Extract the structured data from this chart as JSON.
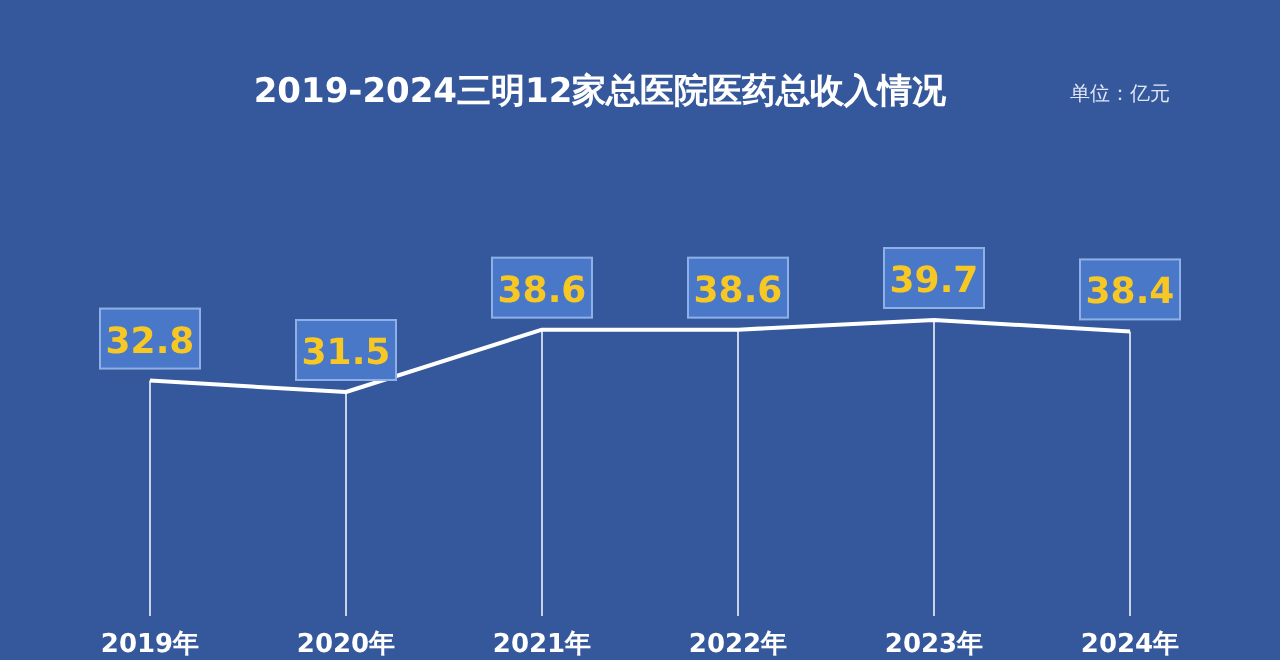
{
  "chart_data": {
    "type": "line",
    "title": "2019-2024三明12家总医院医药总收入情况",
    "annotations": [
      "单位：亿元"
    ],
    "categories": [
      "2019年",
      "2020年",
      "2021年",
      "2022年",
      "2023年",
      "2024年"
    ],
    "series": [
      {
        "color": "#ffffff",
        "values": [
          32.8,
          31.5,
          38.6,
          38.6,
          39.7,
          38.4
        ]
      }
    ],
    "data_labels": true,
    "grid": "x"
  }
}
